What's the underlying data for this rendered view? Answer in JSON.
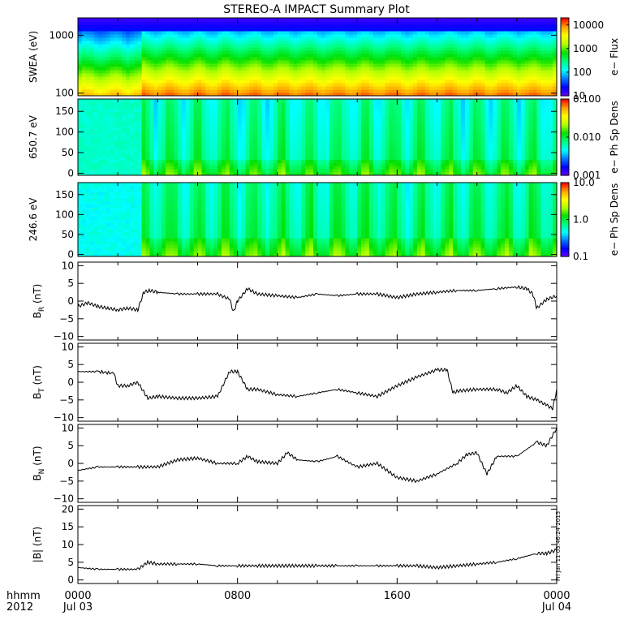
{
  "chart_data": {
    "title": "STEREO-A IMPACT Summary Plot",
    "x_axis": {
      "tick_labels": [
        "0000",
        "0800",
        "1600",
        "0000"
      ],
      "tick_sublabels": [
        "Jul 03",
        "",
        "",
        "Jul 04"
      ],
      "corner_label": "hhmm",
      "corner_sublabel": "2012",
      "range_hours": [
        0,
        24
      ]
    },
    "stamp": "Fri Jan 11 03:46:24 2013",
    "colors": {
      "spectrogram_scale": [
        "#6a00ff",
        "#0000ff",
        "#0077ff",
        "#00ffff",
        "#00ff80",
        "#00e000",
        "#b4ff00",
        "#ffff00",
        "#ffa000",
        "#ff0000"
      ],
      "line": "#000000"
    },
    "panels": [
      {
        "type": "heatmap",
        "ylabel": "SWEA (eV)",
        "yscale": "log",
        "ylim": [
          90,
          2000
        ],
        "yticks": [
          {
            "v": 100,
            "t": "100"
          },
          {
            "v": 1000,
            "t": "1000"
          }
        ],
        "colorbar": {
          "label": "e− Flux",
          "scale": "log",
          "range": [
            10,
            20000
          ],
          "ticks": [
            {
              "v": 10,
              "t": "10"
            },
            {
              "v": 100,
              "t": "100"
            },
            {
              "v": 1000,
              "t": "1000"
            },
            {
              "v": 10000,
              "t": "10000"
            }
          ]
        },
        "description_rows": "energy vs time, high flux at low energy; quiet interval before ~03:30 UT"
      },
      {
        "type": "heatmap",
        "ylabel": "650.7 eV",
        "yscale": "linear",
        "ylim": [
          -5,
          180
        ],
        "yticks": [
          {
            "v": 0,
            "t": "0"
          },
          {
            "v": 50,
            "t": "50"
          },
          {
            "v": 100,
            "t": "100"
          },
          {
            "v": 150,
            "t": "150"
          }
        ],
        "colorbar": {
          "label": "e− Ph Sp Dens",
          "scale": "log",
          "range": [
            0.001,
            0.1
          ],
          "ticks": [
            {
              "v": 0.001,
              "t": "0.001"
            },
            {
              "v": 0.01,
              "t": "0.010"
            },
            {
              "v": 0.1,
              "t": "0.100"
            }
          ]
        }
      },
      {
        "type": "heatmap",
        "ylabel": "246.6 eV",
        "yscale": "linear",
        "ylim": [
          -5,
          180
        ],
        "yticks": [
          {
            "v": 0,
            "t": "0"
          },
          {
            "v": 50,
            "t": "50"
          },
          {
            "v": 100,
            "t": "100"
          },
          {
            "v": 150,
            "t": "150"
          }
        ],
        "colorbar": {
          "label": "e− Ph Sp Dens",
          "scale": "log",
          "range": [
            0.1,
            10
          ],
          "ticks": [
            {
              "v": 0.1,
              "t": "0.1"
            },
            {
              "v": 1,
              "t": "1.0"
            },
            {
              "v": 10,
              "t": "10.0"
            }
          ]
        }
      },
      {
        "type": "line",
        "ylabel": "B_R (nT)",
        "ylabel_main": "B",
        "ylabel_sub": "R",
        "ylabel_unit": " (nT)",
        "ylim": [
          -11,
          11
        ],
        "yticks": [
          {
            "v": -10,
            "t": "−10"
          },
          {
            "v": -5,
            "t": "−5"
          },
          {
            "v": 0,
            "t": "0"
          },
          {
            "v": 5,
            "t": "5"
          },
          {
            "v": 10,
            "t": "10"
          }
        ],
        "x": [
          0,
          0.5,
          1,
          1.5,
          2,
          2.5,
          3,
          3.3,
          3.6,
          4,
          5,
          6,
          7,
          7.6,
          7.8,
          8.0,
          8.5,
          9,
          10,
          11,
          12,
          13,
          14,
          15,
          16,
          17,
          18,
          19,
          20,
          21,
          22,
          22.5,
          22.8,
          23,
          23.5,
          24
        ],
        "y": [
          -1.5,
          -0.5,
          -1.5,
          -2,
          -2.5,
          -2,
          -2.5,
          2.5,
          3,
          2.5,
          2,
          2,
          2,
          0.5,
          -3,
          0,
          3.5,
          2,
          1.5,
          1,
          2,
          1.5,
          2,
          2,
          1,
          2,
          2.5,
          3,
          3,
          3.5,
          4,
          3.5,
          2,
          -2,
          0.5,
          1.5
        ]
      },
      {
        "type": "line",
        "ylabel_main": "B",
        "ylabel_sub": "T",
        "ylabel_unit": " (nT)",
        "ylim": [
          -11,
          11
        ],
        "yticks": [
          {
            "v": -10,
            "t": "−10"
          },
          {
            "v": -5,
            "t": "−5"
          },
          {
            "v": 0,
            "t": "0"
          },
          {
            "v": 5,
            "t": "5"
          },
          {
            "v": 10,
            "t": "10"
          }
        ],
        "x": [
          0,
          1,
          1.8,
          2,
          2.5,
          3,
          3.5,
          4,
          5,
          6,
          7,
          7.6,
          8,
          8.5,
          9,
          10,
          11,
          12,
          13,
          14,
          15,
          16,
          17,
          18,
          18.5,
          18.8,
          19,
          20,
          21,
          21.5,
          22,
          22.5,
          23,
          23.5,
          23.8,
          24
        ],
        "y": [
          3,
          3,
          2.5,
          -1,
          -1,
          0,
          -4.5,
          -4,
          -4.5,
          -4.5,
          -4,
          3,
          3,
          -2,
          -2,
          -3.5,
          -4,
          -3,
          -2,
          -3,
          -4,
          -1,
          1.5,
          3.5,
          3.5,
          -3,
          -2.5,
          -2,
          -2,
          -3,
          -1,
          -4,
          -5,
          -6.5,
          -7.5,
          -2
        ]
      },
      {
        "type": "line",
        "ylabel_main": "B",
        "ylabel_sub": "N",
        "ylabel_unit": " (nT)",
        "ylim": [
          -11,
          11
        ],
        "yticks": [
          {
            "v": -10,
            "t": "−10"
          },
          {
            "v": -5,
            "t": "−5"
          },
          {
            "v": 0,
            "t": "0"
          },
          {
            "v": 5,
            "t": "5"
          },
          {
            "v": 10,
            "t": "10"
          }
        ],
        "x": [
          0,
          1,
          2,
          3,
          4,
          5,
          6,
          7,
          8,
          8.5,
          9,
          10,
          10.5,
          11,
          12,
          13,
          14,
          15,
          16,
          17,
          18,
          19,
          19.5,
          20,
          20.5,
          21,
          22,
          23,
          23.5,
          24
        ],
        "y": [
          -2,
          -1,
          -1,
          -1,
          -1,
          1,
          1.5,
          0,
          0,
          2,
          0.5,
          0,
          3,
          1,
          0.5,
          2,
          -1,
          0,
          -4,
          -5,
          -3,
          0,
          2.5,
          3,
          -3,
          2,
          2,
          6,
          5,
          10
        ]
      },
      {
        "type": "line",
        "ylabel": "|B| (nT)",
        "ylabel_main": "|B|",
        "ylabel_sub": "",
        "ylabel_unit": " (nT)",
        "ylim": [
          -1,
          21
        ],
        "yticks": [
          {
            "v": 0,
            "t": "0"
          },
          {
            "v": 5,
            "t": "5"
          },
          {
            "v": 10,
            "t": "10"
          },
          {
            "v": 15,
            "t": "15"
          },
          {
            "v": 20,
            "t": "20"
          }
        ],
        "x": [
          0,
          1,
          2,
          3,
          3.5,
          4,
          5,
          6,
          7,
          8,
          9,
          10,
          11,
          12,
          13,
          14,
          15,
          16,
          17,
          18,
          19,
          20,
          21,
          22,
          23,
          23.5,
          24
        ],
        "y": [
          3.5,
          3,
          3,
          3,
          5,
          4.5,
          4.5,
          4.5,
          4,
          4,
          4,
          4,
          4,
          4,
          4,
          4,
          4,
          4,
          4,
          3.5,
          4,
          4.5,
          5,
          6,
          7.5,
          7.5,
          8.5
        ]
      }
    ]
  }
}
